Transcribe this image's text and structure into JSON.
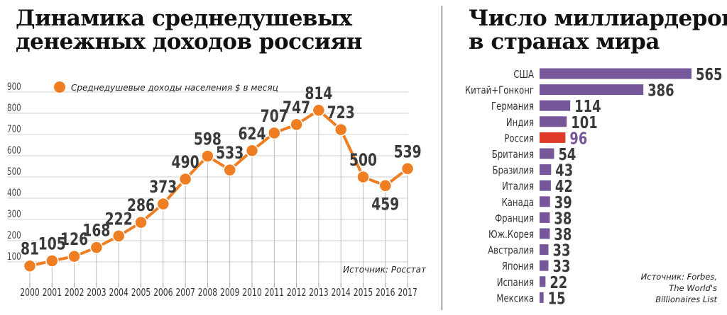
{
  "line_chart": {
    "title_line1": "Динамика среднедушевых",
    "title_line2": "денежных доходов россиян",
    "legend": "Среднедушевые доходы населения $ в месяц",
    "source": "Источник: Росстат",
    "color": "#EF7D22"
  },
  "bar_chart": {
    "title_line1": "Число миллиардеров",
    "title_line2": "в странах мира",
    "source_line1": "Источник: Forbes,",
    "source_line2": "The World's",
    "source_line3": "Billionaires List",
    "bar_color": "#76589A",
    "highlight_color": "#E03A2A"
  },
  "chart_data": [
    {
      "type": "line",
      "title": "Динамика среднедушевых денежных доходов россиян",
      "series_name": "Среднедушевые доходы населения $ в месяц",
      "x": [
        "2000",
        "2001",
        "2002",
        "2003",
        "2004",
        "2005",
        "2006",
        "2007",
        "2008",
        "2009",
        "2010",
        "2011",
        "2012",
        "2013",
        "2014",
        "2015",
        "2016",
        "2017"
      ],
      "values": [
        81,
        105,
        126,
        168,
        222,
        286,
        373,
        490,
        598,
        533,
        624,
        707,
        747,
        814,
        723,
        500,
        459,
        539
      ],
      "yticks": [
        100,
        200,
        300,
        400,
        500,
        600,
        700,
        800,
        900
      ],
      "ylim": [
        0,
        900
      ],
      "grid": true
    },
    {
      "type": "bar",
      "orientation": "horizontal",
      "title": "Число миллиардеров в странах мира",
      "categories": [
        "США",
        "Китай+Гонконг",
        "Германия",
        "Индия",
        "Россия",
        "Британия",
        "Бразилия",
        "Италия",
        "Канада",
        "Франция",
        "Юж.Корея",
        "Австралия",
        "Япония",
        "Испания",
        "Мексика"
      ],
      "values": [
        565,
        386,
        114,
        101,
        96,
        54,
        43,
        42,
        39,
        38,
        38,
        33,
        33,
        22,
        15
      ],
      "highlight": "Россия"
    }
  ]
}
